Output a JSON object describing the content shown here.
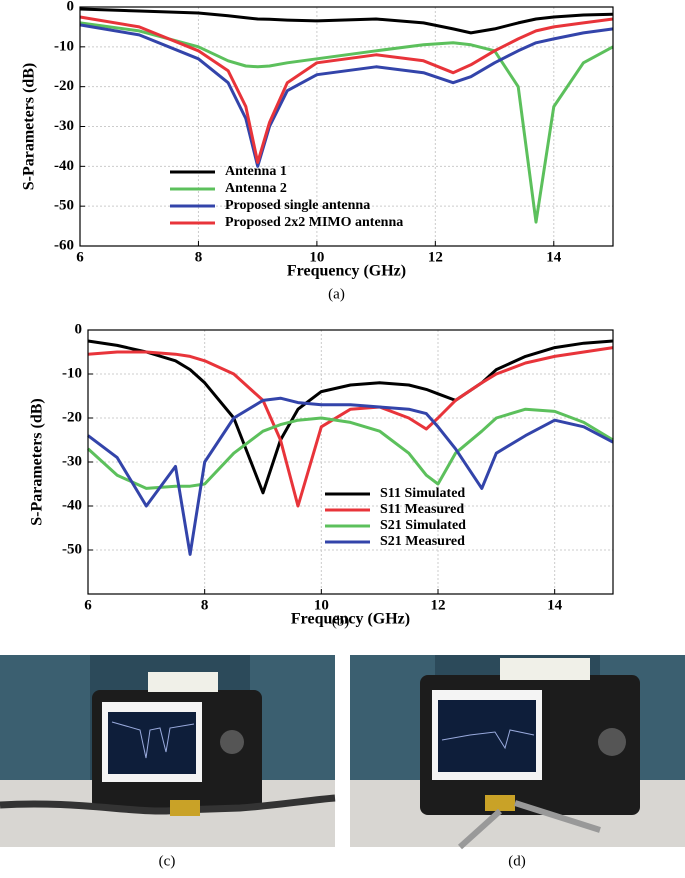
{
  "chart_data": [
    {
      "type": "line",
      "caption": "(a)",
      "xlabel": "Frequency (GHz)",
      "ylabel": "S-Parameters (dB)",
      "x": [
        6,
        7,
        8,
        8.5,
        8.8,
        9,
        9.2,
        9.5,
        10,
        11,
        11.8,
        12.3,
        12.6,
        13,
        13.4,
        13.7,
        14,
        14.5,
        15
      ],
      "series": [
        {
          "name": "Antenna 1",
          "color": "#000000",
          "values": [
            -0.5,
            -1,
            -1.5,
            -2.2,
            -2.7,
            -3,
            -3.1,
            -3.3,
            -3.5,
            -3,
            -4,
            -5.5,
            -6.5,
            -5.5,
            -4,
            -3,
            -2.5,
            -2,
            -1.8
          ]
        },
        {
          "name": "Antenna 2",
          "color": "#5cc05c",
          "values": [
            -4,
            -6,
            -10,
            -13.5,
            -14.8,
            -15,
            -14.8,
            -14,
            -13,
            -11,
            -9.5,
            -9,
            -9.5,
            -11,
            -20,
            -54,
            -25,
            -14,
            -10
          ]
        },
        {
          "name": "Proposed single antenna",
          "color": "#3344aa",
          "values": [
            -4.5,
            -7,
            -13,
            -19,
            -28,
            -40,
            -30,
            -21,
            -17,
            -15,
            -16.5,
            -19,
            -17.5,
            -14,
            -11,
            -9,
            -8,
            -6.5,
            -5.5
          ]
        },
        {
          "name": "Proposed 2x2 MIMO antenna",
          "color": "#e8343a",
          "values": [
            -2.5,
            -5,
            -11,
            -16,
            -25,
            -39,
            -29,
            -19,
            -14,
            -12,
            -13.5,
            -16.5,
            -14.5,
            -11,
            -8,
            -6,
            -5,
            -4,
            -3
          ]
        }
      ],
      "xlim": [
        6,
        15
      ],
      "xticks": [
        6,
        8,
        10,
        12,
        14
      ],
      "ylim": [
        -60,
        0
      ],
      "yticks": [
        0,
        -10,
        -20,
        -30,
        -40,
        -50,
        -60
      ],
      "grid": true
    },
    {
      "type": "line",
      "caption": "(b)",
      "xlabel": "Frequency (GHz)",
      "ylabel": "S-Parameters (dB)",
      "x": [
        6,
        6.5,
        7,
        7.5,
        7.75,
        8,
        8.5,
        9,
        9.3,
        9.6,
        10,
        10.5,
        11,
        11.5,
        11.8,
        12,
        12.3,
        12.75,
        13,
        13.5,
        14,
        14.5,
        15
      ],
      "series": [
        {
          "name": "S11 Simulated",
          "color": "#000000",
          "values": [
            -2.5,
            -3.5,
            -5,
            -7,
            -9,
            -12,
            -20,
            -37,
            -25,
            -18,
            -14,
            -12.5,
            -12,
            -12.5,
            -13.5,
            -14.5,
            -16,
            -12,
            -9,
            -6,
            -4,
            -3,
            -2.5
          ]
        },
        {
          "name": "S11 Measured",
          "color": "#e8343a",
          "values": [
            -5.5,
            -5,
            -5,
            -5.5,
            -6,
            -7,
            -10,
            -16,
            -25,
            -40,
            -22,
            -18,
            -17.5,
            -20,
            -22.5,
            -20,
            -16,
            -12,
            -10,
            -7.5,
            -6,
            -5,
            -4
          ]
        },
        {
          "name": "S21 Simulated",
          "color": "#5cc05c",
          "values": [
            -27,
            -33,
            -36,
            -35.5,
            -35.5,
            -35,
            -28,
            -23,
            -21.5,
            -20.5,
            -20,
            -21,
            -23,
            -28,
            -33,
            -35,
            -28,
            -23,
            -20,
            -18,
            -18.5,
            -21,
            -25
          ]
        },
        {
          "name": "S21 Measured",
          "color": "#3344aa",
          "values": [
            -24,
            -29,
            -40,
            -31,
            -51,
            -30,
            -20,
            -16,
            -15.5,
            -16.5,
            -17,
            -17,
            -17.5,
            -18,
            -19,
            -22,
            -27,
            -36,
            -28,
            -24,
            -20.5,
            -22,
            -25.5
          ]
        }
      ],
      "xlim": [
        6,
        15
      ],
      "xticks": [
        6,
        8,
        10,
        12,
        14
      ],
      "ylim": [
        -60,
        0
      ],
      "yticks": [
        0,
        -10,
        -20,
        -30,
        -40,
        -50
      ],
      "grid": true
    }
  ],
  "panels": [
    {
      "caption": "(c)"
    },
    {
      "caption": "(d)"
    }
  ]
}
